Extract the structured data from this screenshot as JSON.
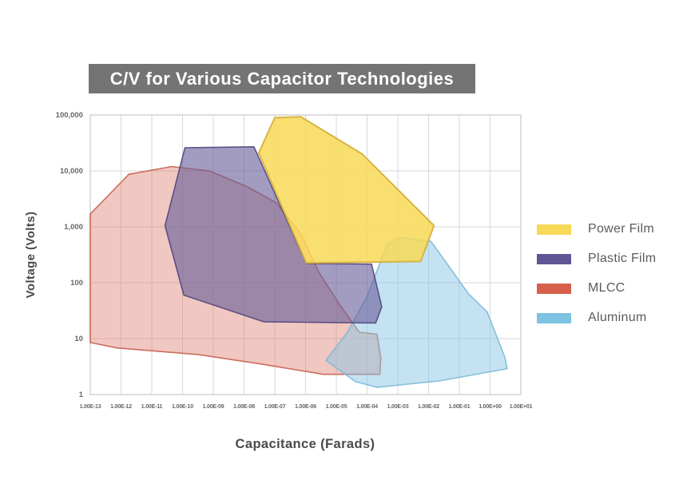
{
  "title": "C/V for Various Capacitor Technologies",
  "x_axis": {
    "title": "Capacitance (Farads)",
    "scale": "log",
    "tick_labels": [
      "1.00E-13",
      "1.00E-12",
      "1.00E-11",
      "1.00E-10",
      "1.00E-09",
      "1.00E-08",
      "1.00E-07",
      "1.00E-06",
      "1.00E-05",
      "1.00E-04",
      "1.00E-03",
      "1.00E-02",
      "1.00E-01",
      "1.00E+00",
      "1.00E+01"
    ]
  },
  "y_axis": {
    "title": "Voltage (Volts)",
    "scale": "log",
    "tick_labels": [
      "100,000",
      "10,000",
      "1,000",
      "100",
      "10",
      "1"
    ]
  },
  "legend": {
    "items": [
      {
        "label": "Power Film",
        "color": "#F7D957"
      },
      {
        "label": "Plastic Film",
        "color": "#615695"
      },
      {
        "label": "MLCC",
        "color": "#D6604D"
      },
      {
        "label": "Aluminum",
        "color": "#7EC3E2"
      }
    ]
  },
  "colors": {
    "banner_bg": "#747474",
    "banner_text": "#ffffff",
    "grid": "#d9d9d9",
    "plot_border": "#c8c8c8",
    "tick_text": "#666666",
    "axis_title_text": "#4a4a4a"
  },
  "chart_data": {
    "type": "area",
    "title": "C/V for Various Capacitor Technologies",
    "xlabel": "Capacitance (Farads)",
    "ylabel": "Voltage (Volts)",
    "x_scale": "log",
    "y_scale": "log",
    "xlim": [
      1e-13,
      10
    ],
    "ylim": [
      1,
      100000
    ],
    "grid": true,
    "legend_position": "right",
    "series": [
      {
        "name": "MLCC",
        "fill": "#DD8276",
        "fill_opacity": 0.45,
        "stroke": "#C7604F",
        "stroke_width": 1.6,
        "points": [
          [
            1e-13,
            1700
          ],
          [
            1.8e-12,
            8700
          ],
          [
            4.5e-11,
            12000
          ],
          [
            7.4e-10,
            10000
          ],
          [
            1.3e-08,
            5200
          ],
          [
            1.1e-07,
            2700
          ],
          [
            6.5e-07,
            800
          ],
          [
            2.8e-06,
            150
          ],
          [
            1.3e-05,
            40
          ],
          [
            5.6e-05,
            13
          ],
          [
            0.00021,
            12
          ],
          [
            0.00028,
            4.5
          ],
          [
            0.00026,
            2.3
          ],
          [
            3.8e-06,
            2.3
          ],
          [
            3.8e-08,
            3.5
          ],
          [
            3.2e-10,
            5.2
          ],
          [
            7.6e-13,
            6.8
          ],
          [
            1e-13,
            8.5
          ]
        ]
      },
      {
        "name": "Aluminum",
        "fill": "#8AC6E4",
        "fill_opacity": 0.5,
        "stroke": "#7CB9D9",
        "stroke_width": 1.6,
        "points": [
          [
            0.0011,
            650
          ],
          [
            0.012,
            550
          ],
          [
            0.2,
            63
          ],
          [
            0.8,
            30
          ],
          [
            3,
            4.7
          ],
          [
            3.6,
            2.9
          ],
          [
            0.022,
            1.75
          ],
          [
            0.00021,
            1.35
          ],
          [
            4.2e-05,
            1.7
          ],
          [
            4.6e-06,
            4.1
          ],
          [
            2.3e-05,
            13
          ],
          [
            0.0001,
            57
          ],
          [
            0.00025,
            210
          ],
          [
            0.00046,
            490
          ]
        ]
      },
      {
        "name": "Plastic Film",
        "fill": "#6A5F9B",
        "fill_opacity": 0.62,
        "stroke": "#4F4680",
        "stroke_width": 1.6,
        "points": [
          [
            1.2e-10,
            26000
          ],
          [
            2.1e-08,
            27000
          ],
          [
            1.05e-06,
            220
          ],
          [
            0.00014,
            215
          ],
          [
            0.0003,
            37
          ],
          [
            0.00019,
            19
          ],
          [
            4.4e-08,
            20
          ],
          [
            1.1e-10,
            60
          ],
          [
            2.7e-11,
            1050
          ]
        ]
      },
      {
        "name": "Power Film",
        "fill": "#F7D957",
        "fill_opacity": 0.85,
        "stroke": "#D3AF3C",
        "stroke_width": 2,
        "points": [
          [
            1e-07,
            90000
          ],
          [
            7e-07,
            93000
          ],
          [
            7e-05,
            20000
          ],
          [
            0.015,
            1050
          ],
          [
            0.0055,
            240
          ],
          [
            1.05e-06,
            225
          ],
          [
            3e-08,
            21000
          ]
        ]
      }
    ]
  }
}
